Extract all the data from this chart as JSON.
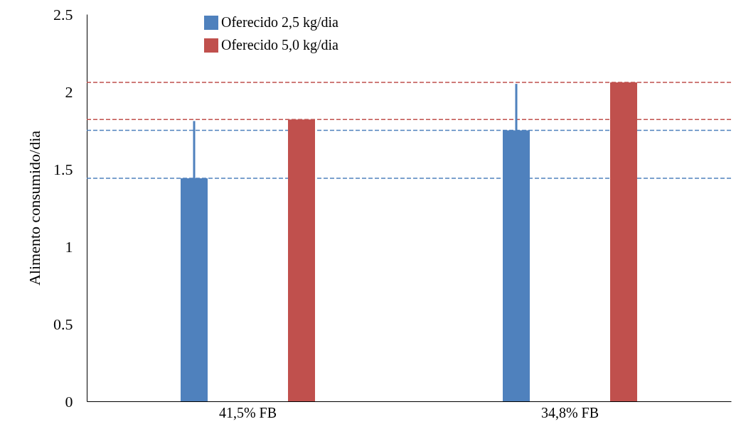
{
  "chart_data": {
    "type": "bar",
    "ylabel": "Alimento consumido/dia",
    "categories": [
      "41,5% FB",
      "34,8% FB"
    ],
    "series": [
      {
        "name": "Oferecido 2,5 kg/dia",
        "color": "#4f81bd",
        "values": [
          1.44,
          1.75
        ],
        "errors": [
          [
            1.44,
            1.81
          ],
          [
            1.75,
            2.05
          ]
        ]
      },
      {
        "name": "Oferecido 5,0 kg/dia",
        "color": "#c0504d",
        "values": [
          1.82,
          2.06
        ]
      }
    ],
    "ylim": [
      0,
      2.5
    ],
    "yticks": [
      0,
      0.5,
      1,
      1.5,
      2,
      2.5
    ],
    "ref_lines": [
      {
        "axis": "y",
        "value": 2.06,
        "color": "#c0504d",
        "line_style": "dashed"
      },
      {
        "axis": "y",
        "value": 1.82,
        "color": "#c0504d",
        "line_style": "dashed"
      },
      {
        "axis": "y",
        "value": 1.75,
        "color": "#4f81bd",
        "line_style": "dashed"
      },
      {
        "axis": "y",
        "value": 1.44,
        "color": "#4f81bd",
        "line_style": "dashed"
      }
    ],
    "grid": false,
    "legend": "top left"
  }
}
